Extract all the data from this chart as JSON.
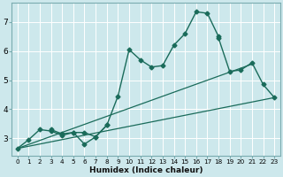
{
  "background_color": "#cde8ec",
  "grid_color": "#ffffff",
  "line_color": "#1a6b5a",
  "xlabel": "Humidex (Indice chaleur)",
  "xlim": [
    -0.5,
    23.5
  ],
  "ylim": [
    2.4,
    7.65
  ],
  "yticks": [
    3,
    4,
    5,
    6,
    7
  ],
  "xticks": [
    0,
    1,
    2,
    3,
    4,
    5,
    6,
    7,
    8,
    9,
    10,
    11,
    12,
    13,
    14,
    15,
    16,
    17,
    18,
    19,
    20,
    21,
    22,
    23
  ],
  "series": [
    {
      "x": [
        0,
        1,
        2,
        3,
        4,
        5,
        6,
        7,
        8,
        9,
        10,
        11,
        12,
        13,
        14,
        15,
        16,
        17,
        18
      ],
      "y": [
        2.65,
        2.95,
        3.3,
        3.25,
        3.1,
        3.2,
        2.8,
        3.05,
        3.45,
        4.45,
        6.05,
        5.7,
        5.45,
        5.5,
        6.2,
        6.6,
        7.35,
        7.3,
        6.5
      ],
      "marker": "D",
      "markersize": 2.5,
      "linewidth": 1.0
    },
    {
      "x": [
        3,
        4,
        5,
        6,
        7,
        8
      ],
      "y": [
        3.3,
        3.15,
        3.2,
        3.2,
        3.05,
        3.45
      ],
      "marker": "D",
      "markersize": 2.5,
      "linewidth": 1.0
    },
    {
      "x": [
        18,
        19,
        20,
        21,
        22,
        23
      ],
      "y": [
        6.45,
        5.3,
        5.35,
        5.6,
        4.85,
        4.4
      ],
      "marker": "D",
      "markersize": 2.5,
      "linewidth": 1.0
    },
    {
      "x": [
        0,
        23
      ],
      "y": [
        2.65,
        4.4
      ],
      "marker": null,
      "markersize": 0,
      "linewidth": 0.9
    },
    {
      "x": [
        0,
        21
      ],
      "y": [
        2.65,
        5.55
      ],
      "marker": null,
      "markersize": 0,
      "linewidth": 0.9
    }
  ]
}
